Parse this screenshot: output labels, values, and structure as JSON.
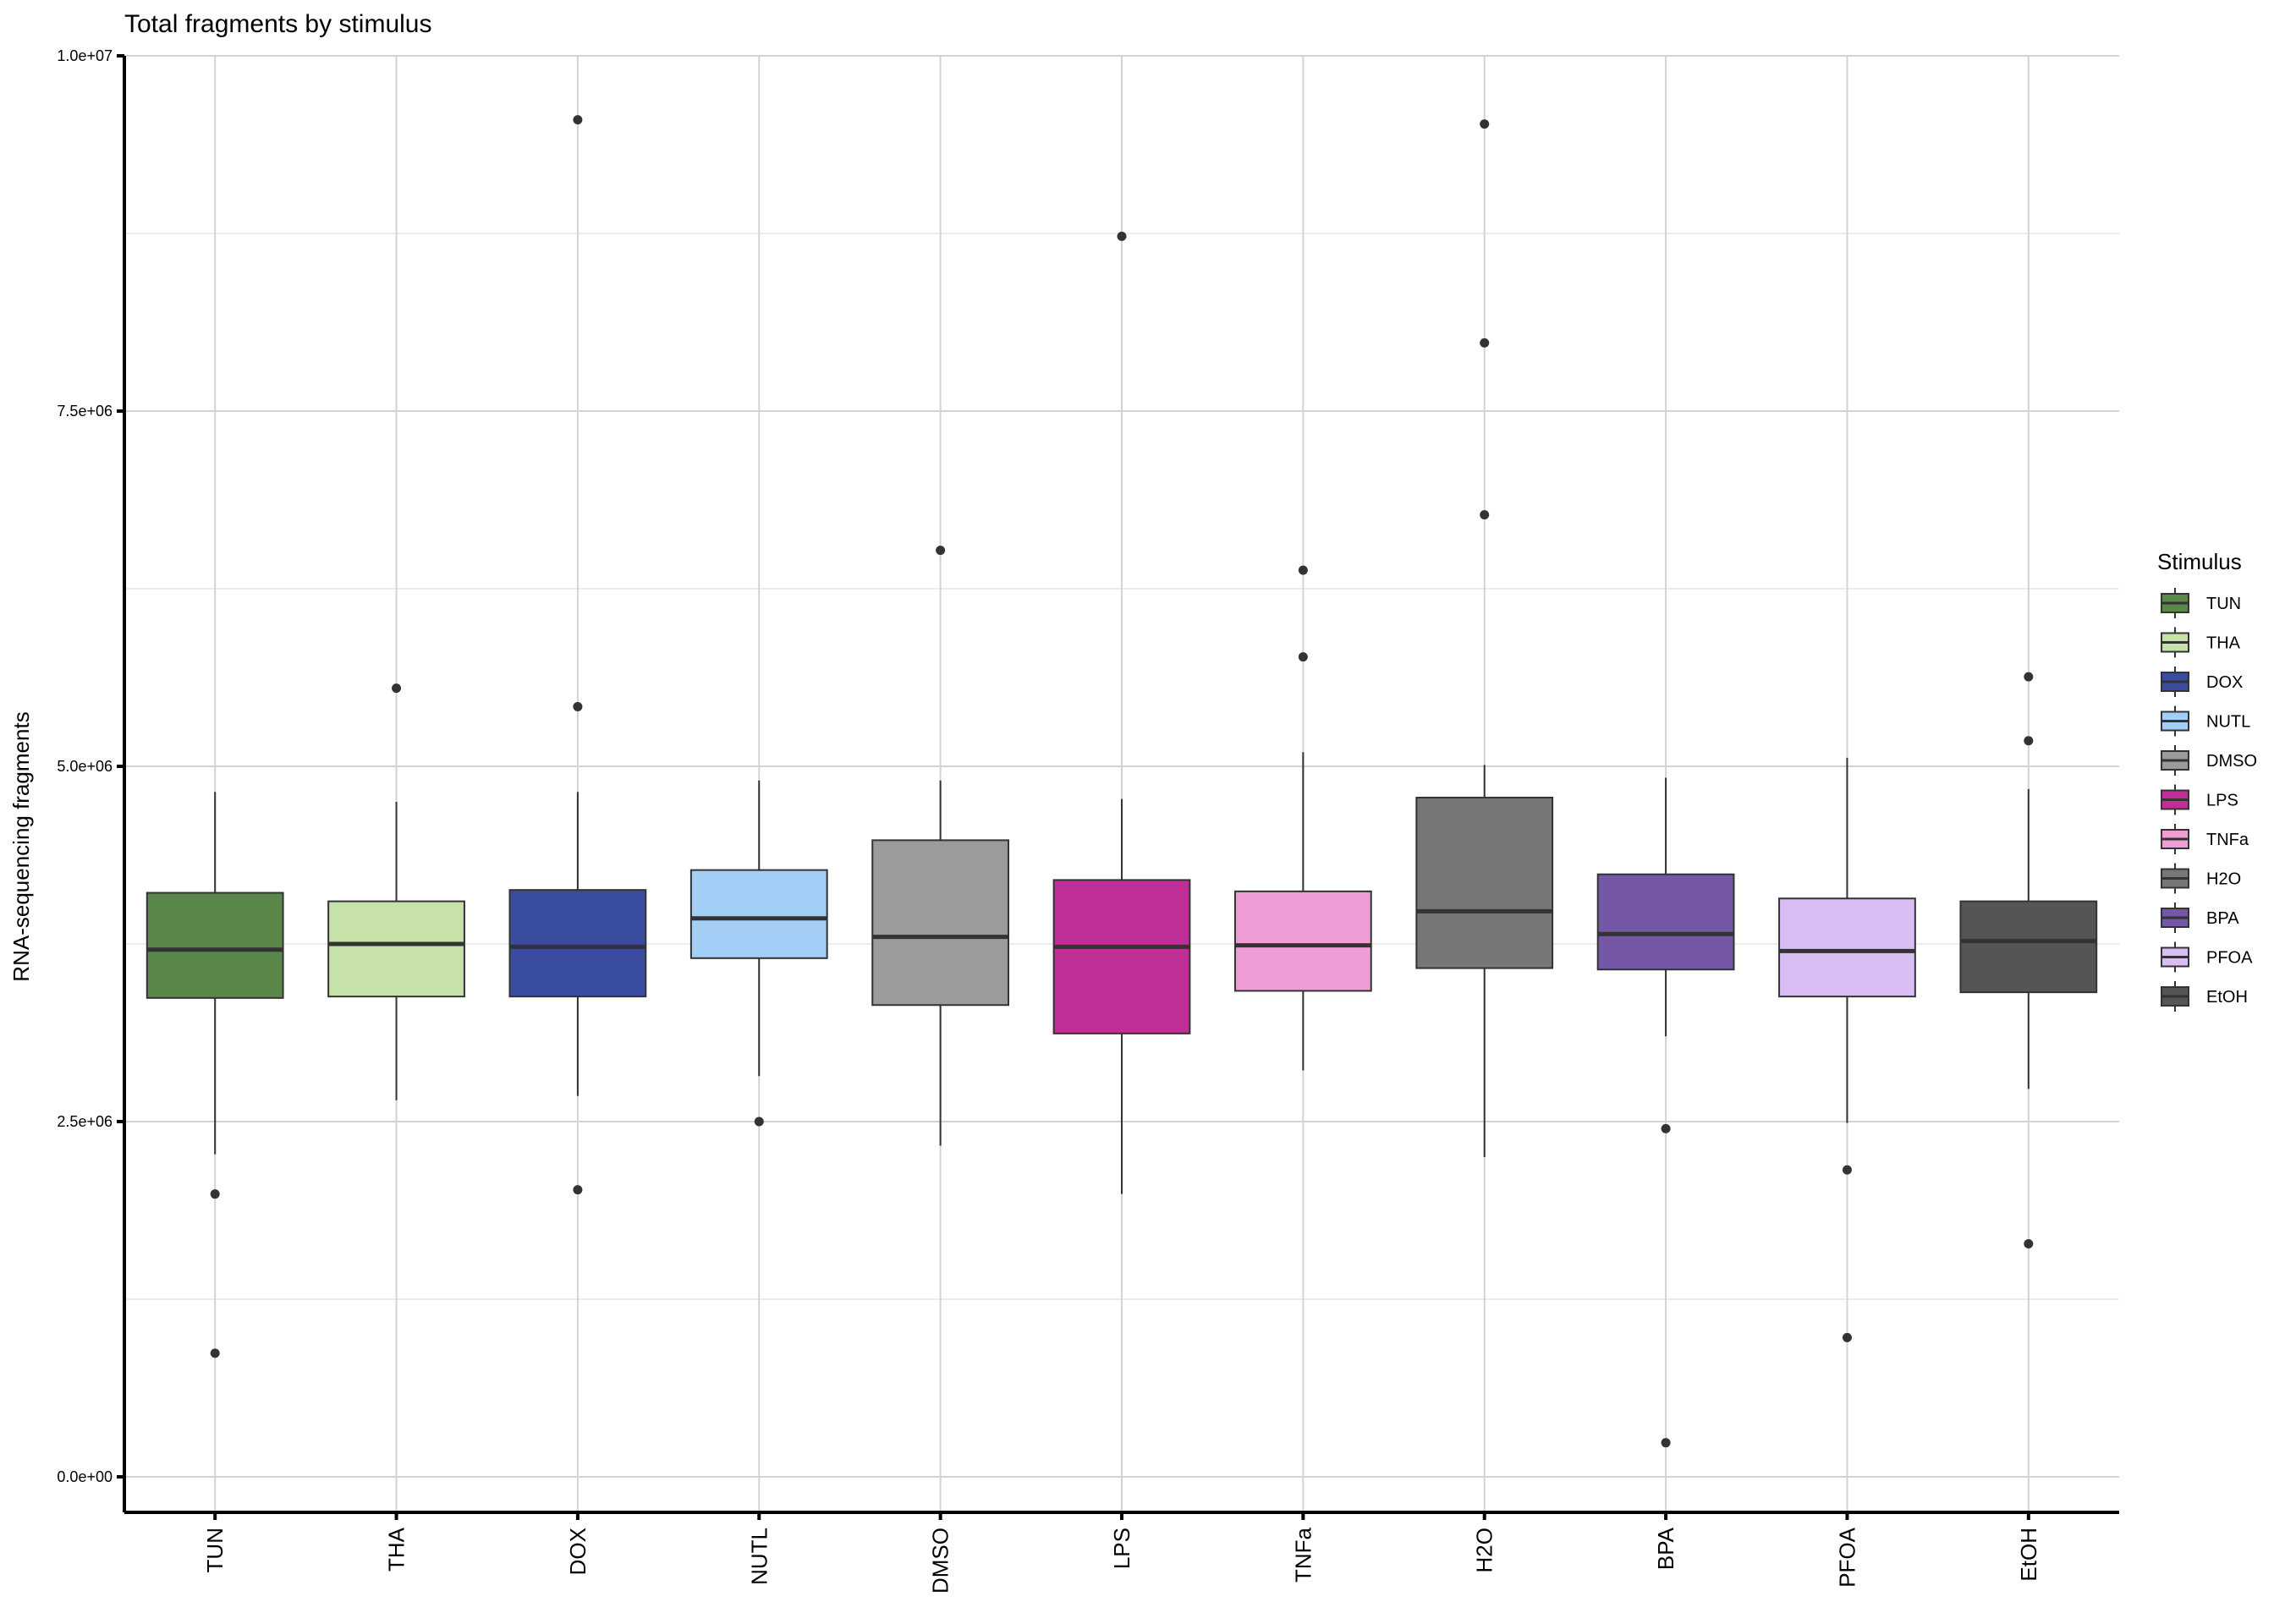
{
  "chart_data": {
    "type": "box",
    "title": "Total fragments by stimulus",
    "xlabel": "",
    "ylabel": "RNA-sequencing fragments",
    "ylim": [
      -250000,
      10000000
    ],
    "y_ticks": [
      0,
      2500000,
      5000000,
      7500000,
      10000000
    ],
    "y_tick_labels": [
      "0.0e+00",
      "2.5e+06",
      "5.0e+06",
      "7.5e+06",
      "1.0e+07"
    ],
    "grid": true,
    "legend": {
      "title": "Stimulus",
      "position": "right"
    },
    "categories": [
      "TUN",
      "THA",
      "DOX",
      "NUTL",
      "DMSO",
      "LPS",
      "TNFa",
      "H2O",
      "BPA",
      "PFOA",
      "EtOH"
    ],
    "colors": [
      "#5a874a",
      "#c6e2a8",
      "#3a4ca0",
      "#a3cff7",
      "#9b9b9b",
      "#c02e97",
      "#f19dd5",
      "#777777",
      "#7557a7",
      "#d8bef5",
      "#555555"
    ],
    "boxes": [
      {
        "label": "TUN",
        "whisker_low": 2270000,
        "q1": 3370000,
        "median": 3710000,
        "q3": 4110000,
        "whisker_high": 4820000,
        "outliers": [
          1990000,
          870000
        ]
      },
      {
        "label": "THA",
        "whisker_low": 2650000,
        "q1": 3380000,
        "median": 3750000,
        "q3": 4050000,
        "whisker_high": 4750000,
        "outliers": [
          5550000
        ]
      },
      {
        "label": "DOX",
        "whisker_low": 2680000,
        "q1": 3380000,
        "median": 3730000,
        "q3": 4130000,
        "whisker_high": 4820000,
        "outliers": [
          9550000,
          5420000,
          2020000
        ]
      },
      {
        "label": "NUTL",
        "whisker_low": 2820000,
        "q1": 3650000,
        "median": 3930000,
        "q3": 4270000,
        "whisker_high": 4900000,
        "outliers": [
          2500000
        ]
      },
      {
        "label": "DMSO",
        "whisker_low": 2330000,
        "q1": 3320000,
        "median": 3800000,
        "q3": 4480000,
        "whisker_high": 4900000,
        "outliers": [
          6520000
        ]
      },
      {
        "label": "LPS",
        "whisker_low": 1990000,
        "q1": 3120000,
        "median": 3730000,
        "q3": 4200000,
        "whisker_high": 4770000,
        "outliers": [
          8730000
        ]
      },
      {
        "label": "TNFa",
        "whisker_low": 2860000,
        "q1": 3420000,
        "median": 3740000,
        "q3": 4120000,
        "whisker_high": 5100000,
        "outliers": [
          6380000,
          5770000
        ]
      },
      {
        "label": "H2O",
        "whisker_low": 2250000,
        "q1": 3580000,
        "median": 3980000,
        "q3": 4780000,
        "whisker_high": 5010000,
        "outliers": [
          9520000,
          7980000,
          6770000
        ]
      },
      {
        "label": "BPA",
        "whisker_low": 3100000,
        "q1": 3570000,
        "median": 3820000,
        "q3": 4240000,
        "whisker_high": 4920000,
        "outliers": [
          2450000,
          240000
        ]
      },
      {
        "label": "PFOA",
        "whisker_low": 2490000,
        "q1": 3380000,
        "median": 3700000,
        "q3": 4070000,
        "whisker_high": 5060000,
        "outliers": [
          2160000,
          980000
        ]
      },
      {
        "label": "EtOH",
        "whisker_low": 2730000,
        "q1": 3410000,
        "median": 3770000,
        "q3": 4050000,
        "whisker_high": 4840000,
        "outliers": [
          5630000,
          5180000,
          1640000
        ]
      }
    ]
  }
}
